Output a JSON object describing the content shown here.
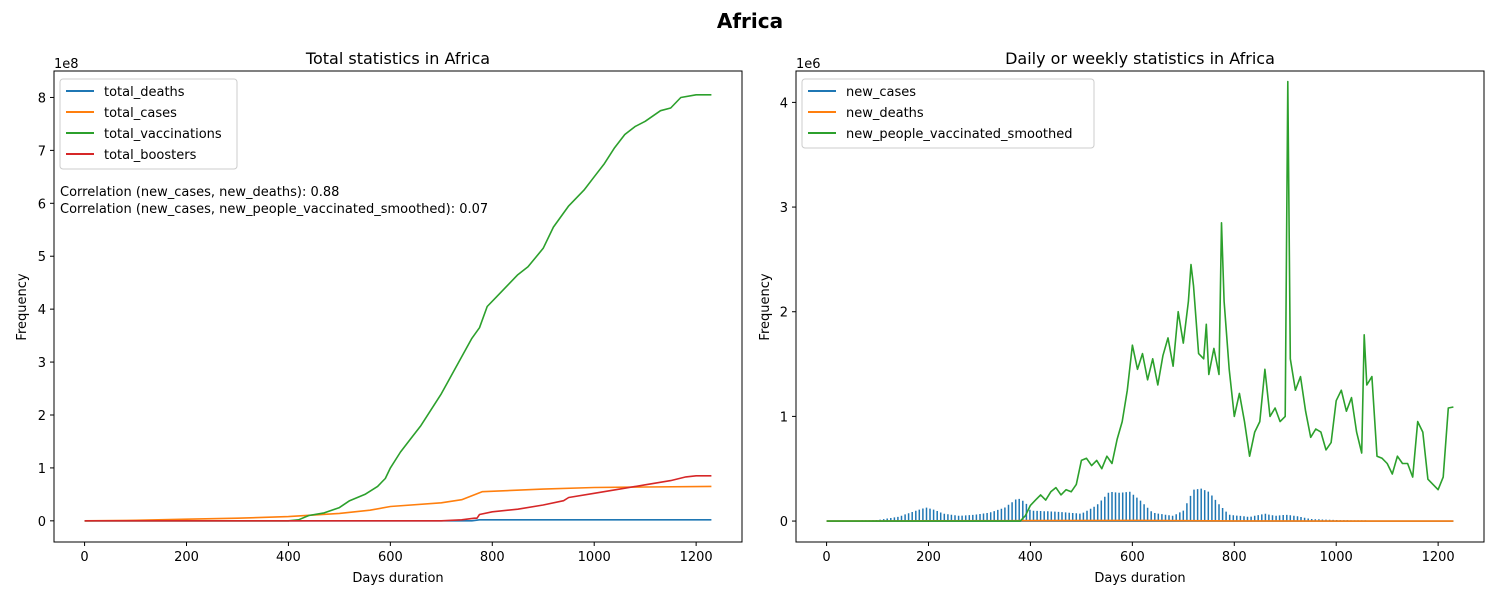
{
  "figure": {
    "title": "Africa"
  },
  "chart_data": [
    {
      "type": "line",
      "title": "Total statistics in Africa",
      "xlabel": "Days duration",
      "ylabel": "Frequency",
      "y_offset_label": "1e8",
      "xlim": [
        -60,
        1290
      ],
      "ylim": [
        -0.4,
        8.5
      ],
      "y_scale_factor": 100000000,
      "xticks": [
        0,
        200,
        400,
        600,
        800,
        1000,
        1200
      ],
      "yticks": [
        0,
        1,
        2,
        3,
        4,
        5,
        6,
        7,
        8
      ],
      "legend": {
        "placement": "top-left"
      },
      "annotations": [
        "Correlation (new_cases, new_deaths): 0.88",
        "Correlation (new_cases, new_people_vaccinated_smoothed): 0.07"
      ],
      "series": [
        {
          "name": "total_deaths",
          "color": "#1f77b4",
          "style": "line",
          "points": [
            [
              0,
              0
            ],
            [
              200,
              0
            ],
            [
              400,
              0
            ],
            [
              600,
              0
            ],
            [
              760,
              0
            ],
            [
              775,
              0.02
            ],
            [
              800,
              0.02
            ],
            [
              1000,
              0.02
            ],
            [
              1230,
              0.02
            ]
          ]
        },
        {
          "name": "total_cases",
          "color": "#ff7f0e",
          "style": "line",
          "points": [
            [
              0,
              0
            ],
            [
              100,
              0.01
            ],
            [
              200,
              0.03
            ],
            [
              300,
              0.05
            ],
            [
              400,
              0.08
            ],
            [
              500,
              0.14
            ],
            [
              560,
              0.2
            ],
            [
              600,
              0.27
            ],
            [
              700,
              0.34
            ],
            [
              740,
              0.4
            ],
            [
              780,
              0.55
            ],
            [
              900,
              0.6
            ],
            [
              1000,
              0.63
            ],
            [
              1100,
              0.64
            ],
            [
              1230,
              0.65
            ]
          ]
        },
        {
          "name": "total_vaccinations",
          "color": "#2ca02c",
          "style": "line",
          "points": [
            [
              0,
              0
            ],
            [
              400,
              0
            ],
            [
              420,
              0.02
            ],
            [
              440,
              0.1
            ],
            [
              470,
              0.15
            ],
            [
              500,
              0.25
            ],
            [
              520,
              0.38
            ],
            [
              550,
              0.5
            ],
            [
              575,
              0.65
            ],
            [
              590,
              0.8
            ],
            [
              600,
              1.0
            ],
            [
              620,
              1.3
            ],
            [
              640,
              1.55
            ],
            [
              660,
              1.8
            ],
            [
              680,
              2.1
            ],
            [
              700,
              2.4
            ],
            [
              720,
              2.75
            ],
            [
              740,
              3.1
            ],
            [
              760,
              3.45
            ],
            [
              775,
              3.65
            ],
            [
              790,
              4.05
            ],
            [
              810,
              4.25
            ],
            [
              830,
              4.45
            ],
            [
              850,
              4.65
            ],
            [
              870,
              4.8
            ],
            [
              900,
              5.15
            ],
            [
              920,
              5.55
            ],
            [
              950,
              5.95
            ],
            [
              980,
              6.25
            ],
            [
              1000,
              6.5
            ],
            [
              1020,
              6.75
            ],
            [
              1040,
              7.05
            ],
            [
              1060,
              7.3
            ],
            [
              1080,
              7.45
            ],
            [
              1100,
              7.55
            ],
            [
              1130,
              7.75
            ],
            [
              1150,
              7.8
            ],
            [
              1170,
              8.0
            ],
            [
              1200,
              8.05
            ],
            [
              1230,
              8.05
            ]
          ]
        },
        {
          "name": "total_boosters",
          "color": "#d62728",
          "style": "line",
          "points": [
            [
              0,
              0
            ],
            [
              100,
              0
            ],
            [
              200,
              0
            ],
            [
              400,
              0
            ],
            [
              500,
              0
            ],
            [
              600,
              0
            ],
            [
              700,
              0
            ],
            [
              740,
              0.02
            ],
            [
              765,
              0.05
            ],
            [
              770,
              0.05
            ],
            [
              775,
              0.12
            ],
            [
              800,
              0.17
            ],
            [
              850,
              0.22
            ],
            [
              900,
              0.3
            ],
            [
              940,
              0.38
            ],
            [
              950,
              0.44
            ],
            [
              1000,
              0.52
            ],
            [
              1050,
              0.6
            ],
            [
              1100,
              0.68
            ],
            [
              1150,
              0.76
            ],
            [
              1180,
              0.83
            ],
            [
              1200,
              0.85
            ],
            [
              1230,
              0.85
            ]
          ]
        }
      ]
    },
    {
      "type": "line",
      "title": "Daily or weekly statistics in Africa",
      "xlabel": "Days duration",
      "ylabel": "Frequency",
      "y_offset_label": "1e6",
      "xlim": [
        -60,
        1290
      ],
      "ylim": [
        -0.2,
        4.3
      ],
      "y_scale_factor": 1000000,
      "xticks": [
        0,
        200,
        400,
        600,
        800,
        1000,
        1200
      ],
      "yticks": [
        0,
        1,
        2,
        3,
        4
      ],
      "legend": {
        "placement": "top-left"
      },
      "series": [
        {
          "name": "new_cases",
          "color": "#1f77b4",
          "style": "weekly-spikes",
          "points": [
            [
              0,
              0
            ],
            [
              100,
              0.01
            ],
            [
              140,
              0.04
            ],
            [
              170,
              0.09
            ],
            [
              195,
              0.13
            ],
            [
              210,
              0.11
            ],
            [
              230,
              0.07
            ],
            [
              260,
              0.05
            ],
            [
              290,
              0.06
            ],
            [
              320,
              0.08
            ],
            [
              350,
              0.13
            ],
            [
              375,
              0.22
            ],
            [
              390,
              0.18
            ],
            [
              400,
              0.1
            ],
            [
              450,
              0.09
            ],
            [
              500,
              0.07
            ],
            [
              530,
              0.15
            ],
            [
              555,
              0.28
            ],
            [
              575,
              0.27
            ],
            [
              595,
              0.28
            ],
            [
              615,
              0.2
            ],
            [
              640,
              0.08
            ],
            [
              680,
              0.05
            ],
            [
              700,
              0.1
            ],
            [
              720,
              0.3
            ],
            [
              735,
              0.31
            ],
            [
              750,
              0.28
            ],
            [
              770,
              0.16
            ],
            [
              790,
              0.06
            ],
            [
              830,
              0.04
            ],
            [
              860,
              0.07
            ],
            [
              880,
              0.05
            ],
            [
              900,
              0.06
            ],
            [
              920,
              0.05
            ],
            [
              950,
              0.02
            ],
            [
              1000,
              0.01
            ],
            [
              1100,
              0.005
            ],
            [
              1230,
              0
            ]
          ]
        },
        {
          "name": "new_deaths",
          "color": "#ff7f0e",
          "style": "line",
          "points": [
            [
              0,
              0
            ],
            [
              200,
              0.003
            ],
            [
              400,
              0.004
            ],
            [
              600,
              0.006
            ],
            [
              800,
              0.002
            ],
            [
              1000,
              0
            ],
            [
              1230,
              0
            ]
          ]
        },
        {
          "name": "new_people_vaccinated_smoothed",
          "color": "#2ca02c",
          "style": "line",
          "points": [
            [
              0,
              0
            ],
            [
              380,
              0
            ],
            [
              390,
              0.05
            ],
            [
              400,
              0.15
            ],
            [
              410,
              0.2
            ],
            [
              420,
              0.25
            ],
            [
              430,
              0.2
            ],
            [
              440,
              0.28
            ],
            [
              450,
              0.32
            ],
            [
              460,
              0.25
            ],
            [
              470,
              0.3
            ],
            [
              480,
              0.28
            ],
            [
              490,
              0.35
            ],
            [
              500,
              0.58
            ],
            [
              510,
              0.6
            ],
            [
              520,
              0.53
            ],
            [
              530,
              0.58
            ],
            [
              540,
              0.5
            ],
            [
              550,
              0.62
            ],
            [
              560,
              0.55
            ],
            [
              570,
              0.78
            ],
            [
              580,
              0.95
            ],
            [
              590,
              1.25
            ],
            [
              600,
              1.68
            ],
            [
              610,
              1.45
            ],
            [
              620,
              1.6
            ],
            [
              630,
              1.35
            ],
            [
              640,
              1.55
            ],
            [
              650,
              1.3
            ],
            [
              660,
              1.58
            ],
            [
              670,
              1.75
            ],
            [
              680,
              1.48
            ],
            [
              690,
              2.0
            ],
            [
              700,
              1.7
            ],
            [
              710,
              2.1
            ],
            [
              715,
              2.45
            ],
            [
              720,
              2.25
            ],
            [
              730,
              1.6
            ],
            [
              740,
              1.55
            ],
            [
              745,
              1.88
            ],
            [
              750,
              1.4
            ],
            [
              760,
              1.65
            ],
            [
              770,
              1.4
            ],
            [
              775,
              2.85
            ],
            [
              780,
              2.1
            ],
            [
              790,
              1.45
            ],
            [
              800,
              1.0
            ],
            [
              810,
              1.22
            ],
            [
              820,
              0.95
            ],
            [
              830,
              0.62
            ],
            [
              840,
              0.85
            ],
            [
              850,
              0.95
            ],
            [
              860,
              1.45
            ],
            [
              870,
              1.0
            ],
            [
              880,
              1.08
            ],
            [
              890,
              0.95
            ],
            [
              900,
              1.0
            ],
            [
              905,
              4.2
            ],
            [
              910,
              1.55
            ],
            [
              920,
              1.25
            ],
            [
              930,
              1.38
            ],
            [
              940,
              1.05
            ],
            [
              950,
              0.8
            ],
            [
              960,
              0.88
            ],
            [
              970,
              0.85
            ],
            [
              980,
              0.68
            ],
            [
              990,
              0.75
            ],
            [
              1000,
              1.15
            ],
            [
              1010,
              1.25
            ],
            [
              1020,
              1.05
            ],
            [
              1030,
              1.18
            ],
            [
              1040,
              0.85
            ],
            [
              1050,
              0.65
            ],
            [
              1055,
              1.78
            ],
            [
              1060,
              1.3
            ],
            [
              1070,
              1.38
            ],
            [
              1080,
              0.62
            ],
            [
              1090,
              0.6
            ],
            [
              1100,
              0.55
            ],
            [
              1110,
              0.45
            ],
            [
              1120,
              0.62
            ],
            [
              1130,
              0.55
            ],
            [
              1140,
              0.55
            ],
            [
              1150,
              0.42
            ],
            [
              1160,
              0.95
            ],
            [
              1170,
              0.85
            ],
            [
              1180,
              0.4
            ],
            [
              1190,
              0.35
            ],
            [
              1200,
              0.3
            ],
            [
              1210,
              0.42
            ],
            [
              1220,
              1.08
            ],
            [
              1230,
              1.09
            ]
          ]
        }
      ]
    }
  ]
}
